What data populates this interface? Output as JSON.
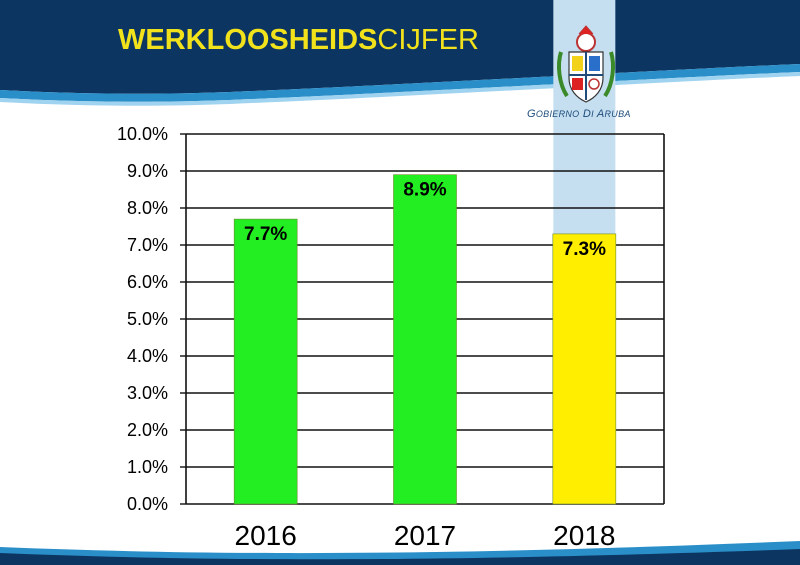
{
  "header": {
    "title_bold": "WERKLOOSHEIDS",
    "title_light": "CIJFER"
  },
  "logo": {
    "caption_g": "G",
    "caption_obierno": "OBIERNO",
    "caption_d": "D",
    "caption_i": "I",
    "caption_a": "A",
    "caption_ruba": "RUBA"
  },
  "colors": {
    "header_navy": "#0d3561",
    "header_wave": "#2a8fc9",
    "bar_green": "#22ee22",
    "bar_yellow": "#ffee00",
    "highlight_blue": "#c5dff0",
    "title_yellow": "#f2e21b"
  },
  "chart_data": {
    "type": "bar",
    "categories": [
      "2016",
      "2017",
      "2018"
    ],
    "values": [
      7.7,
      8.9,
      7.3
    ],
    "data_labels": [
      "7.7%",
      "8.9%",
      "7.3%"
    ],
    "bar_colors": [
      "#22ee22",
      "#22ee22",
      "#ffee00"
    ],
    "ylim": [
      0,
      10
    ],
    "yticks": [
      0,
      1,
      2,
      3,
      4,
      5,
      6,
      7,
      8,
      9,
      10
    ],
    "ytick_labels": [
      "0.0%",
      "1.0%",
      "2.0%",
      "3.0%",
      "4.0%",
      "5.0%",
      "6.0%",
      "7.0%",
      "8.0%",
      "9.0%",
      "10.0%"
    ],
    "grid": true,
    "title": "",
    "xlabel": "",
    "ylabel": ""
  }
}
